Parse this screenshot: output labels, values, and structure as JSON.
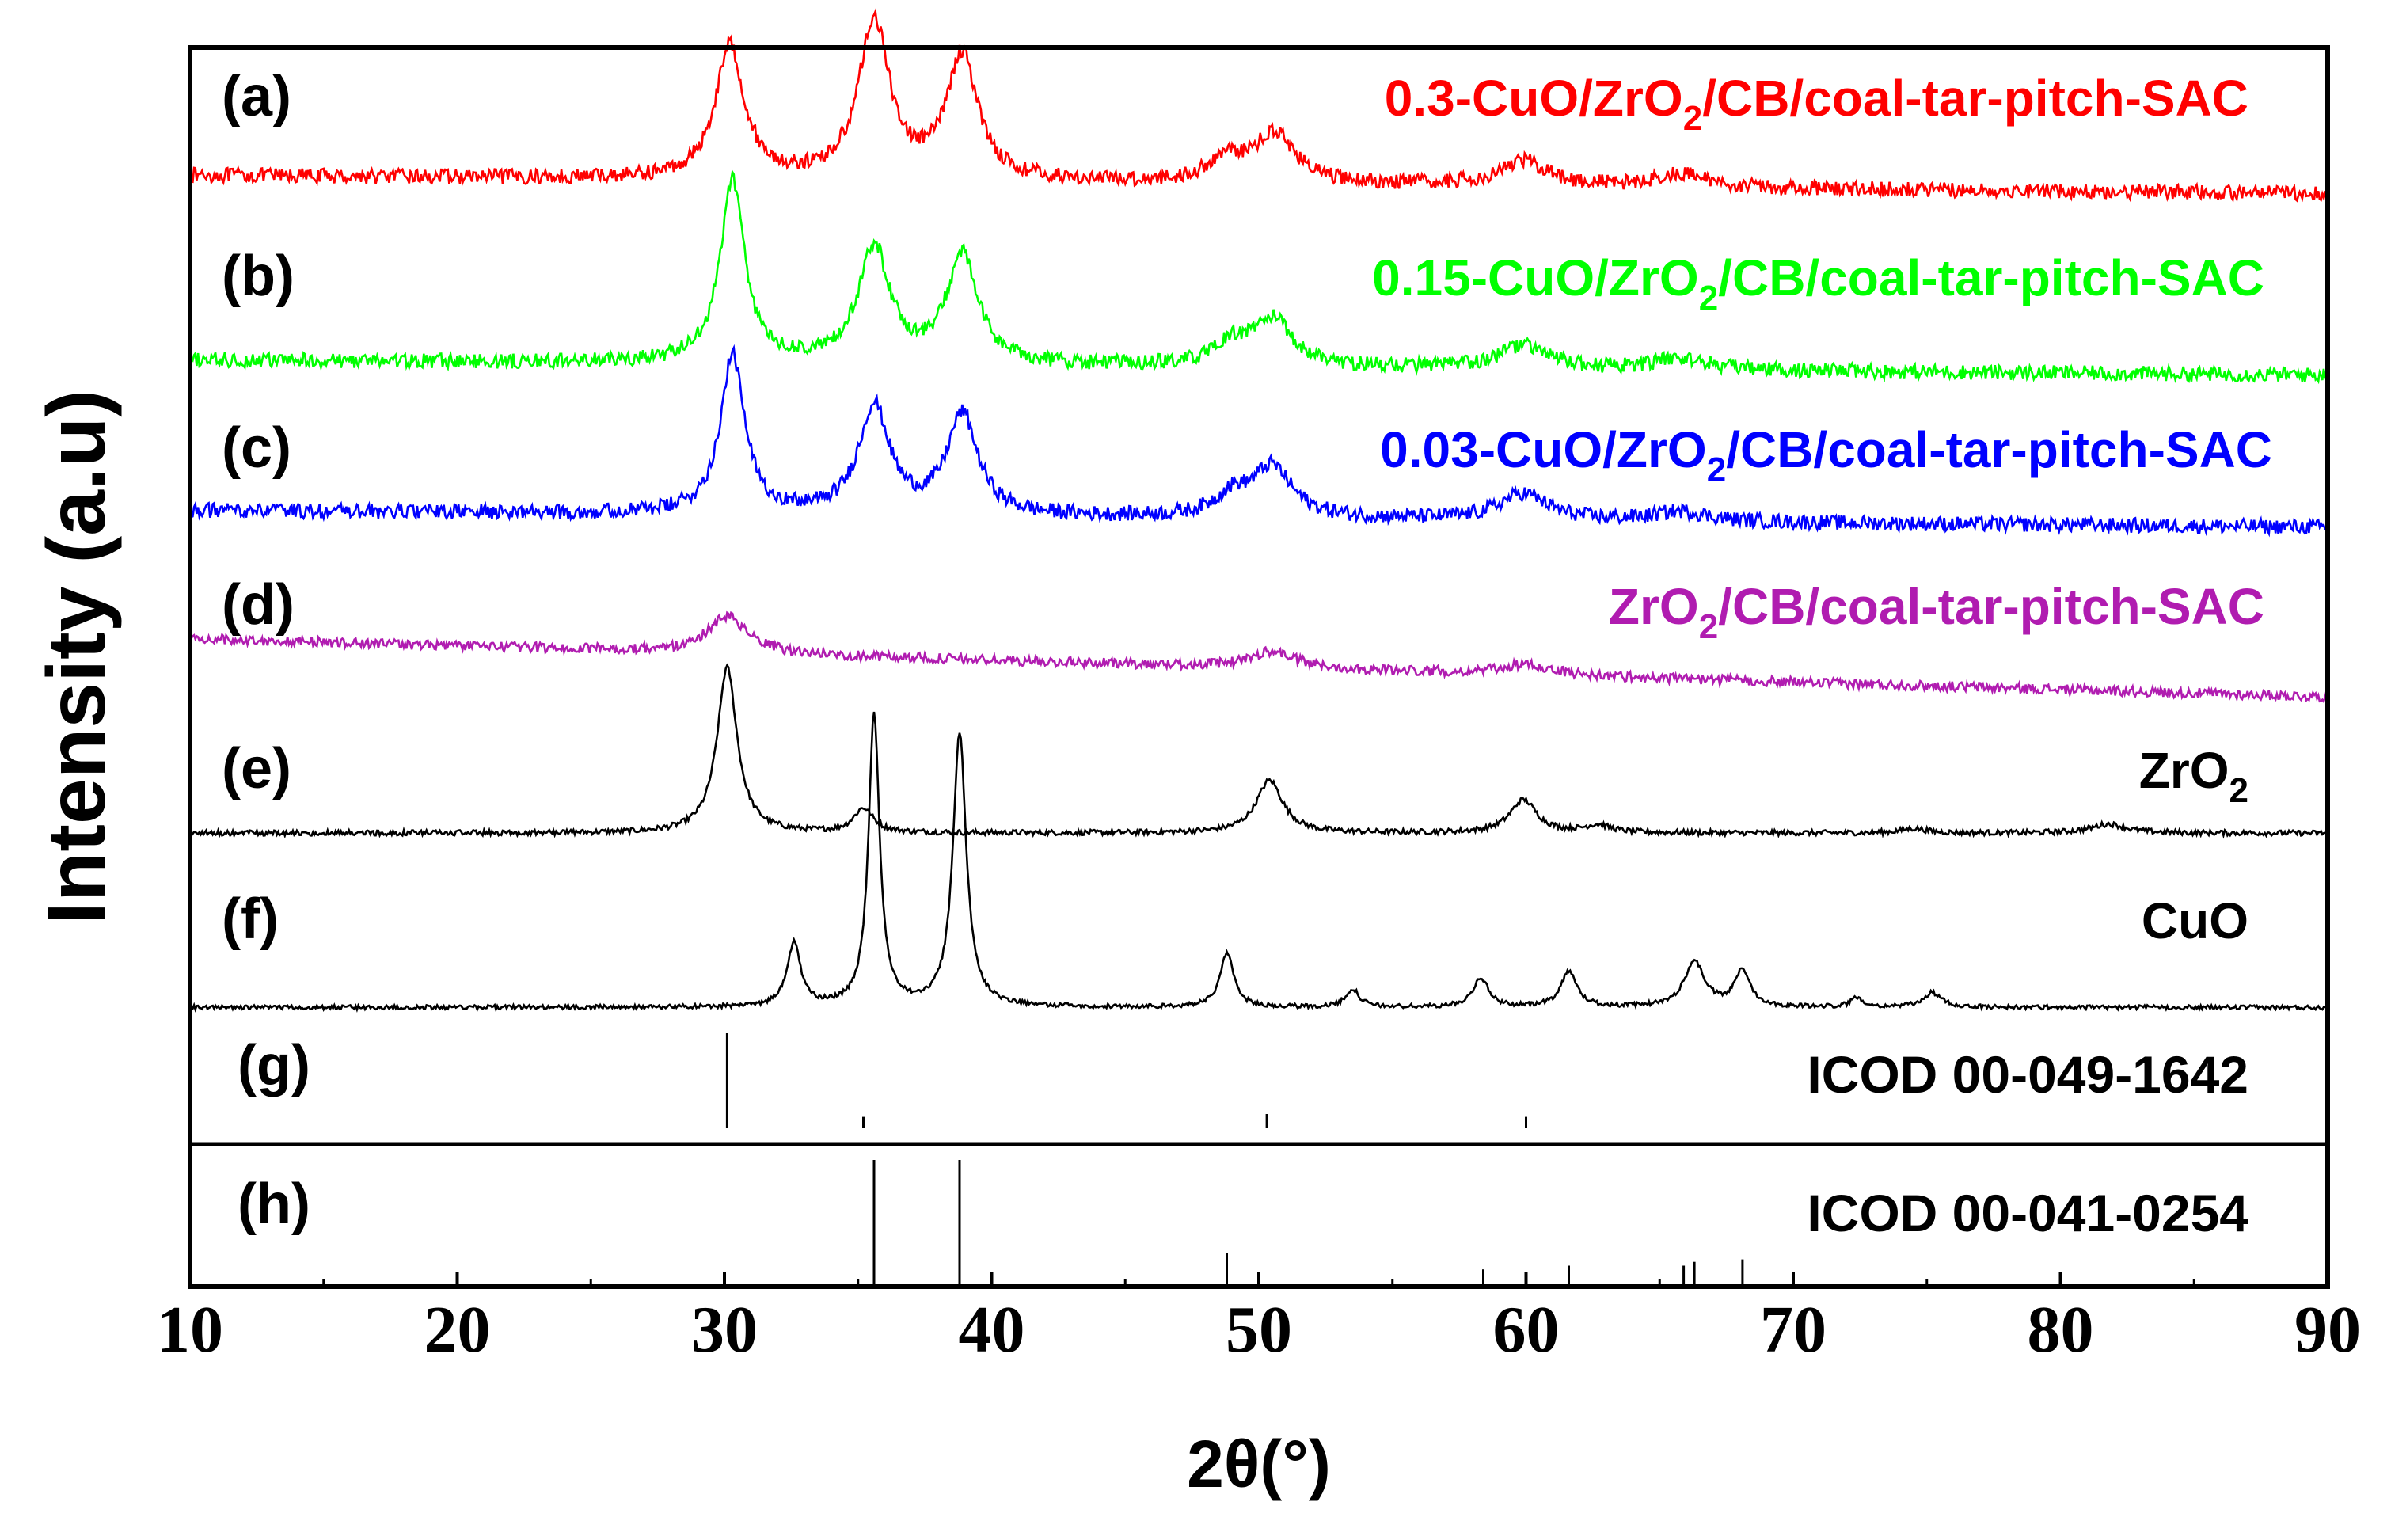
{
  "chart_data": {
    "type": "line",
    "title": "",
    "xlabel": "2θ(°)",
    "ylabel": "Intensity (a.u)",
    "xlim": [
      10,
      90
    ],
    "xticks": [
      10,
      20,
      30,
      40,
      50,
      60,
      70,
      80,
      90
    ],
    "grid": false,
    "series": [
      {
        "id": "a",
        "panel_label": "(a)",
        "name": "0.3-CuO/ZrO2/CB/coal-tar-pitch-SAC",
        "label_parts": [
          "0.3-CuO/ZrO",
          "2",
          "/CB/coal-tar-pitch-SAC"
        ],
        "color": "#ff0000",
        "baseline": [
          1.5,
          0.4
        ],
        "noise": 0.45,
        "peaks": [
          [
            30.2,
            8.0,
            0.65
          ],
          [
            35.6,
            9.5,
            0.7
          ],
          [
            38.9,
            7.5,
            0.7
          ],
          [
            48.8,
            1.4,
            0.8
          ],
          [
            50.6,
            3.0,
            0.9
          ],
          [
            59.9,
            1.5,
            1.1
          ],
          [
            65.8,
            0.8,
            1.2
          ]
        ]
      },
      {
        "id": "b",
        "panel_label": "(b)",
        "name": "0.15-CuO/ZrO2/CB/coal-tar-pitch-SAC",
        "label_parts": [
          "0.15-CuO/ZrO",
          "2",
          "/CB/coal-tar-pitch-SAC"
        ],
        "color": "#00ff00",
        "baseline": [
          1.2,
          0.3
        ],
        "noise": 0.45,
        "peaks": [
          [
            30.3,
            11.0,
            0.55
          ],
          [
            35.6,
            7.0,
            0.7
          ],
          [
            38.9,
            6.5,
            0.7
          ],
          [
            49.0,
            1.2,
            0.8
          ],
          [
            50.5,
            2.8,
            0.9
          ],
          [
            59.9,
            1.4,
            1.1
          ],
          [
            65.8,
            0.7,
            1.2
          ]
        ]
      },
      {
        "id": "c",
        "panel_label": "(c)",
        "name": "0.03-CuO/ZrO2/CB/coal-tar-pitch-SAC",
        "label_parts": [
          "0.03-CuO/ZrO",
          "2",
          "/CB/coal-tar-pitch-SAC"
        ],
        "color": "#0000ff",
        "baseline": [
          1.2,
          0.2
        ],
        "noise": 0.45,
        "peaks": [
          [
            30.3,
            9.5,
            0.55
          ],
          [
            35.6,
            6.5,
            0.7
          ],
          [
            38.9,
            6.0,
            0.7
          ],
          [
            49.0,
            1.2,
            0.8
          ],
          [
            50.5,
            3.0,
            0.9
          ],
          [
            59.9,
            1.6,
            1.1
          ],
          [
            65.8,
            0.6,
            1.2
          ]
        ]
      },
      {
        "id": "d",
        "panel_label": "(d)",
        "name": "ZrO2/CB/coal-tar-pitch-SAC",
        "label_parts": [
          "ZrO",
          "2",
          "/CB/coal-tar-pitch-SAC"
        ],
        "color": "#b01cb0",
        "baseline": [
          3.5,
          0.0
        ],
        "noise": 0.3,
        "peaks": [
          [
            30.1,
            2.2,
            0.9
          ],
          [
            50.5,
            1.0,
            1.0
          ],
          [
            60.0,
            0.6,
            1.2
          ]
        ]
      },
      {
        "id": "e",
        "panel_label": "(e)",
        "name": "ZrO2",
        "label_parts": [
          "ZrO",
          "2",
          ""
        ],
        "color": "#000000",
        "baseline": [
          0.3,
          0.3
        ],
        "noise": 0.18,
        "peaks": [
          [
            30.1,
            11.0,
            0.45
          ],
          [
            35.2,
            1.6,
            0.45
          ],
          [
            50.4,
            3.5,
            0.6
          ],
          [
            59.9,
            2.2,
            0.6
          ],
          [
            62.7,
            0.5,
            0.6
          ],
          [
            74.5,
            0.3,
            0.6
          ],
          [
            81.8,
            0.6,
            0.8
          ]
        ]
      },
      {
        "id": "f",
        "panel_label": "(f)",
        "name": "CuO",
        "label_parts": [
          "CuO",
          "",
          ""
        ],
        "color": "#000000",
        "baseline": [
          0.2,
          0.2
        ],
        "noise": 0.12,
        "peaks": [
          [
            32.6,
            3.5,
            0.3
          ],
          [
            35.6,
            16.0,
            0.25
          ],
          [
            38.8,
            15.0,
            0.3
          ],
          [
            48.8,
            3.0,
            0.3
          ],
          [
            53.5,
            1.0,
            0.3
          ],
          [
            58.3,
            1.6,
            0.35
          ],
          [
            61.6,
            2.0,
            0.35
          ],
          [
            66.3,
            2.5,
            0.45
          ],
          [
            68.1,
            2.0,
            0.35
          ],
          [
            72.4,
            0.5,
            0.3
          ],
          [
            75.2,
            0.8,
            0.4
          ]
        ]
      }
    ],
    "references": [
      {
        "id": "g",
        "panel_label": "(g)",
        "name": "ICOD 00-049-1642",
        "sticks": [
          [
            30.1,
            1.0
          ],
          [
            35.2,
            0.12
          ],
          [
            50.3,
            0.15
          ],
          [
            60.0,
            0.12
          ]
        ]
      },
      {
        "id": "h",
        "panel_label": "(h)",
        "name": "ICOD 00-041-0254",
        "sticks": [
          [
            35.6,
            1.0
          ],
          [
            38.8,
            1.0
          ],
          [
            48.8,
            0.25
          ],
          [
            58.4,
            0.12
          ],
          [
            61.6,
            0.15
          ],
          [
            65.9,
            0.15
          ],
          [
            66.3,
            0.18
          ],
          [
            68.1,
            0.2
          ]
        ]
      }
    ]
  }
}
